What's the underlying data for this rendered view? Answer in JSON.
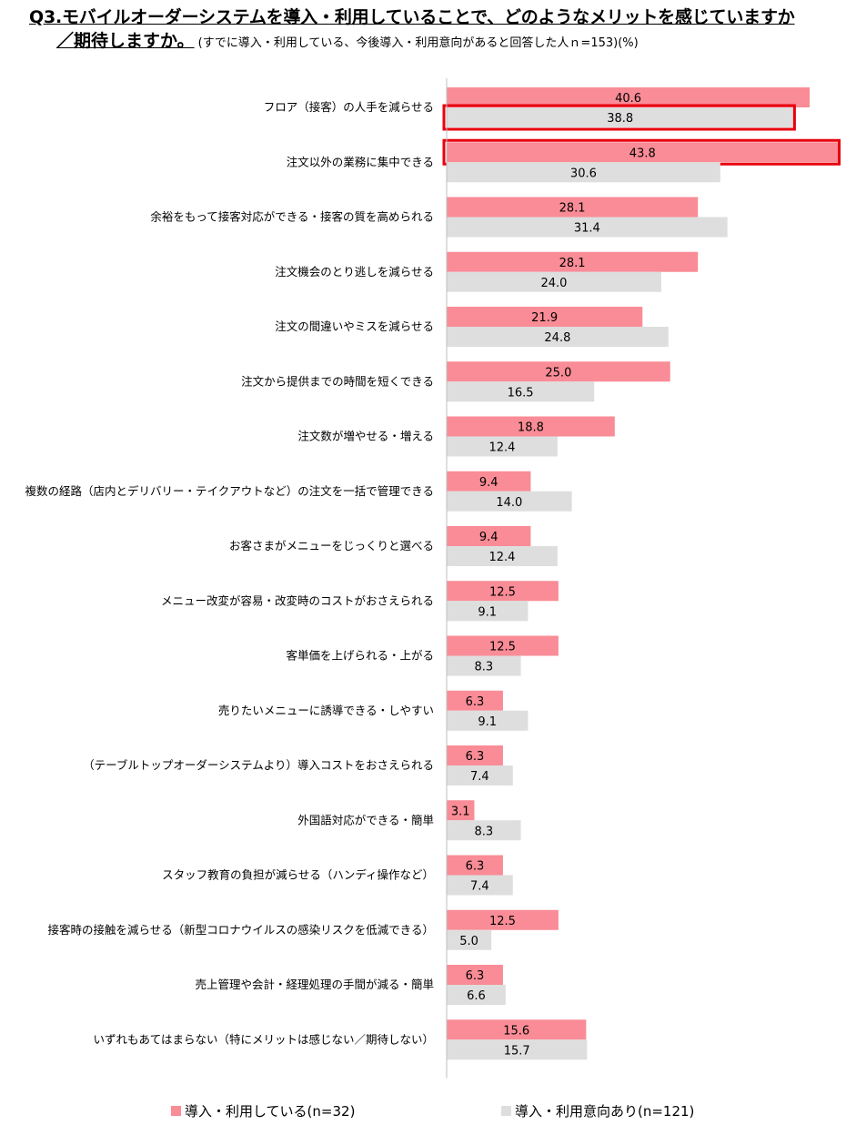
{
  "title": {
    "line1": "Q3.モバイルオーダーシステムを導入・利用していることで、どのようなメリットを感じていますか",
    "line2": "／期待しますか。",
    "note": "(すでに導入・利用している、今後導入・利用意向があると回答した人ｎ=153)(%)"
  },
  "colors": {
    "series1": "#F98C96",
    "series2": "#DEDEDE",
    "highlight": "#E8000D",
    "axis": "#BFBFBF"
  },
  "chart_data": {
    "type": "bar",
    "orientation": "horizontal",
    "xlim": [
      0,
      44
    ],
    "grid": false,
    "legend_position": "bottom",
    "categories": [
      "フロア（接客）の人手を減らせる",
      "注文以外の業務に集中できる",
      "余裕をもって接客対応ができる・接客の質を高められる",
      "注文機会のとり逃しを減らせる",
      "注文の間違いやミスを減らせる",
      "注文から提供までの時間を短くできる",
      "注文数が増やせる・増える",
      "複数の経路（店内とデリバリー・テイクアウトなど）の注文を一括で管理できる",
      "お客さまがメニューをじっくりと選べる",
      "メニュー改変が容易・改変時のコストがおさえられる",
      "客単価を上げられる・上がる",
      "売りたいメニューに誘導できる・しやすい",
      "（テーブルトップオーダーシステムより）導入コストをおさえられる",
      "外国語対応ができる・簡単",
      "スタッフ教育の負担が減らせる（ハンディ操作など）",
      "接客時の接触を減らせる（新型コロナウイルスの感染リスクを低減できる）",
      "売上管理や会計・経理処理の手間が減る・簡単",
      "いずれもあてはまらない（特にメリットは感じない／期待しない）"
    ],
    "series": [
      {
        "name": "導入・利用している(n=32)",
        "values": [
          40.6,
          43.8,
          28.1,
          28.1,
          21.9,
          25.0,
          18.8,
          9.4,
          9.4,
          12.5,
          12.5,
          6.3,
          6.3,
          3.1,
          6.3,
          12.5,
          6.3,
          15.6
        ],
        "labels": [
          "40.6",
          "43.8",
          "28.1",
          "28.1",
          "21.9",
          "25.0",
          "18.8",
          "9.4",
          "9.4",
          "12.5",
          "12.5",
          "6.3",
          "6.3",
          "3.1",
          "6.3",
          "12.5",
          "6.3",
          "15.6"
        ]
      },
      {
        "name": "導入・利用意向あり(n=121)",
        "values": [
          38.8,
          30.6,
          31.4,
          24.0,
          24.8,
          16.5,
          12.4,
          14.0,
          12.4,
          9.1,
          8.3,
          9.1,
          7.4,
          8.3,
          7.4,
          5.0,
          6.6,
          15.7
        ],
        "labels": [
          "38.8",
          "30.6",
          "31.4",
          "24.0",
          "24.8",
          "16.5",
          "12.4",
          "14.0",
          "12.4",
          "9.1",
          "8.3",
          "9.1",
          "7.4",
          "8.3",
          "7.4",
          "5.0",
          "6.6",
          "15.7"
        ]
      }
    ],
    "highlights": [
      {
        "category_index": 0,
        "series_index": 1
      },
      {
        "category_index": 1,
        "series_index": 0
      }
    ]
  }
}
